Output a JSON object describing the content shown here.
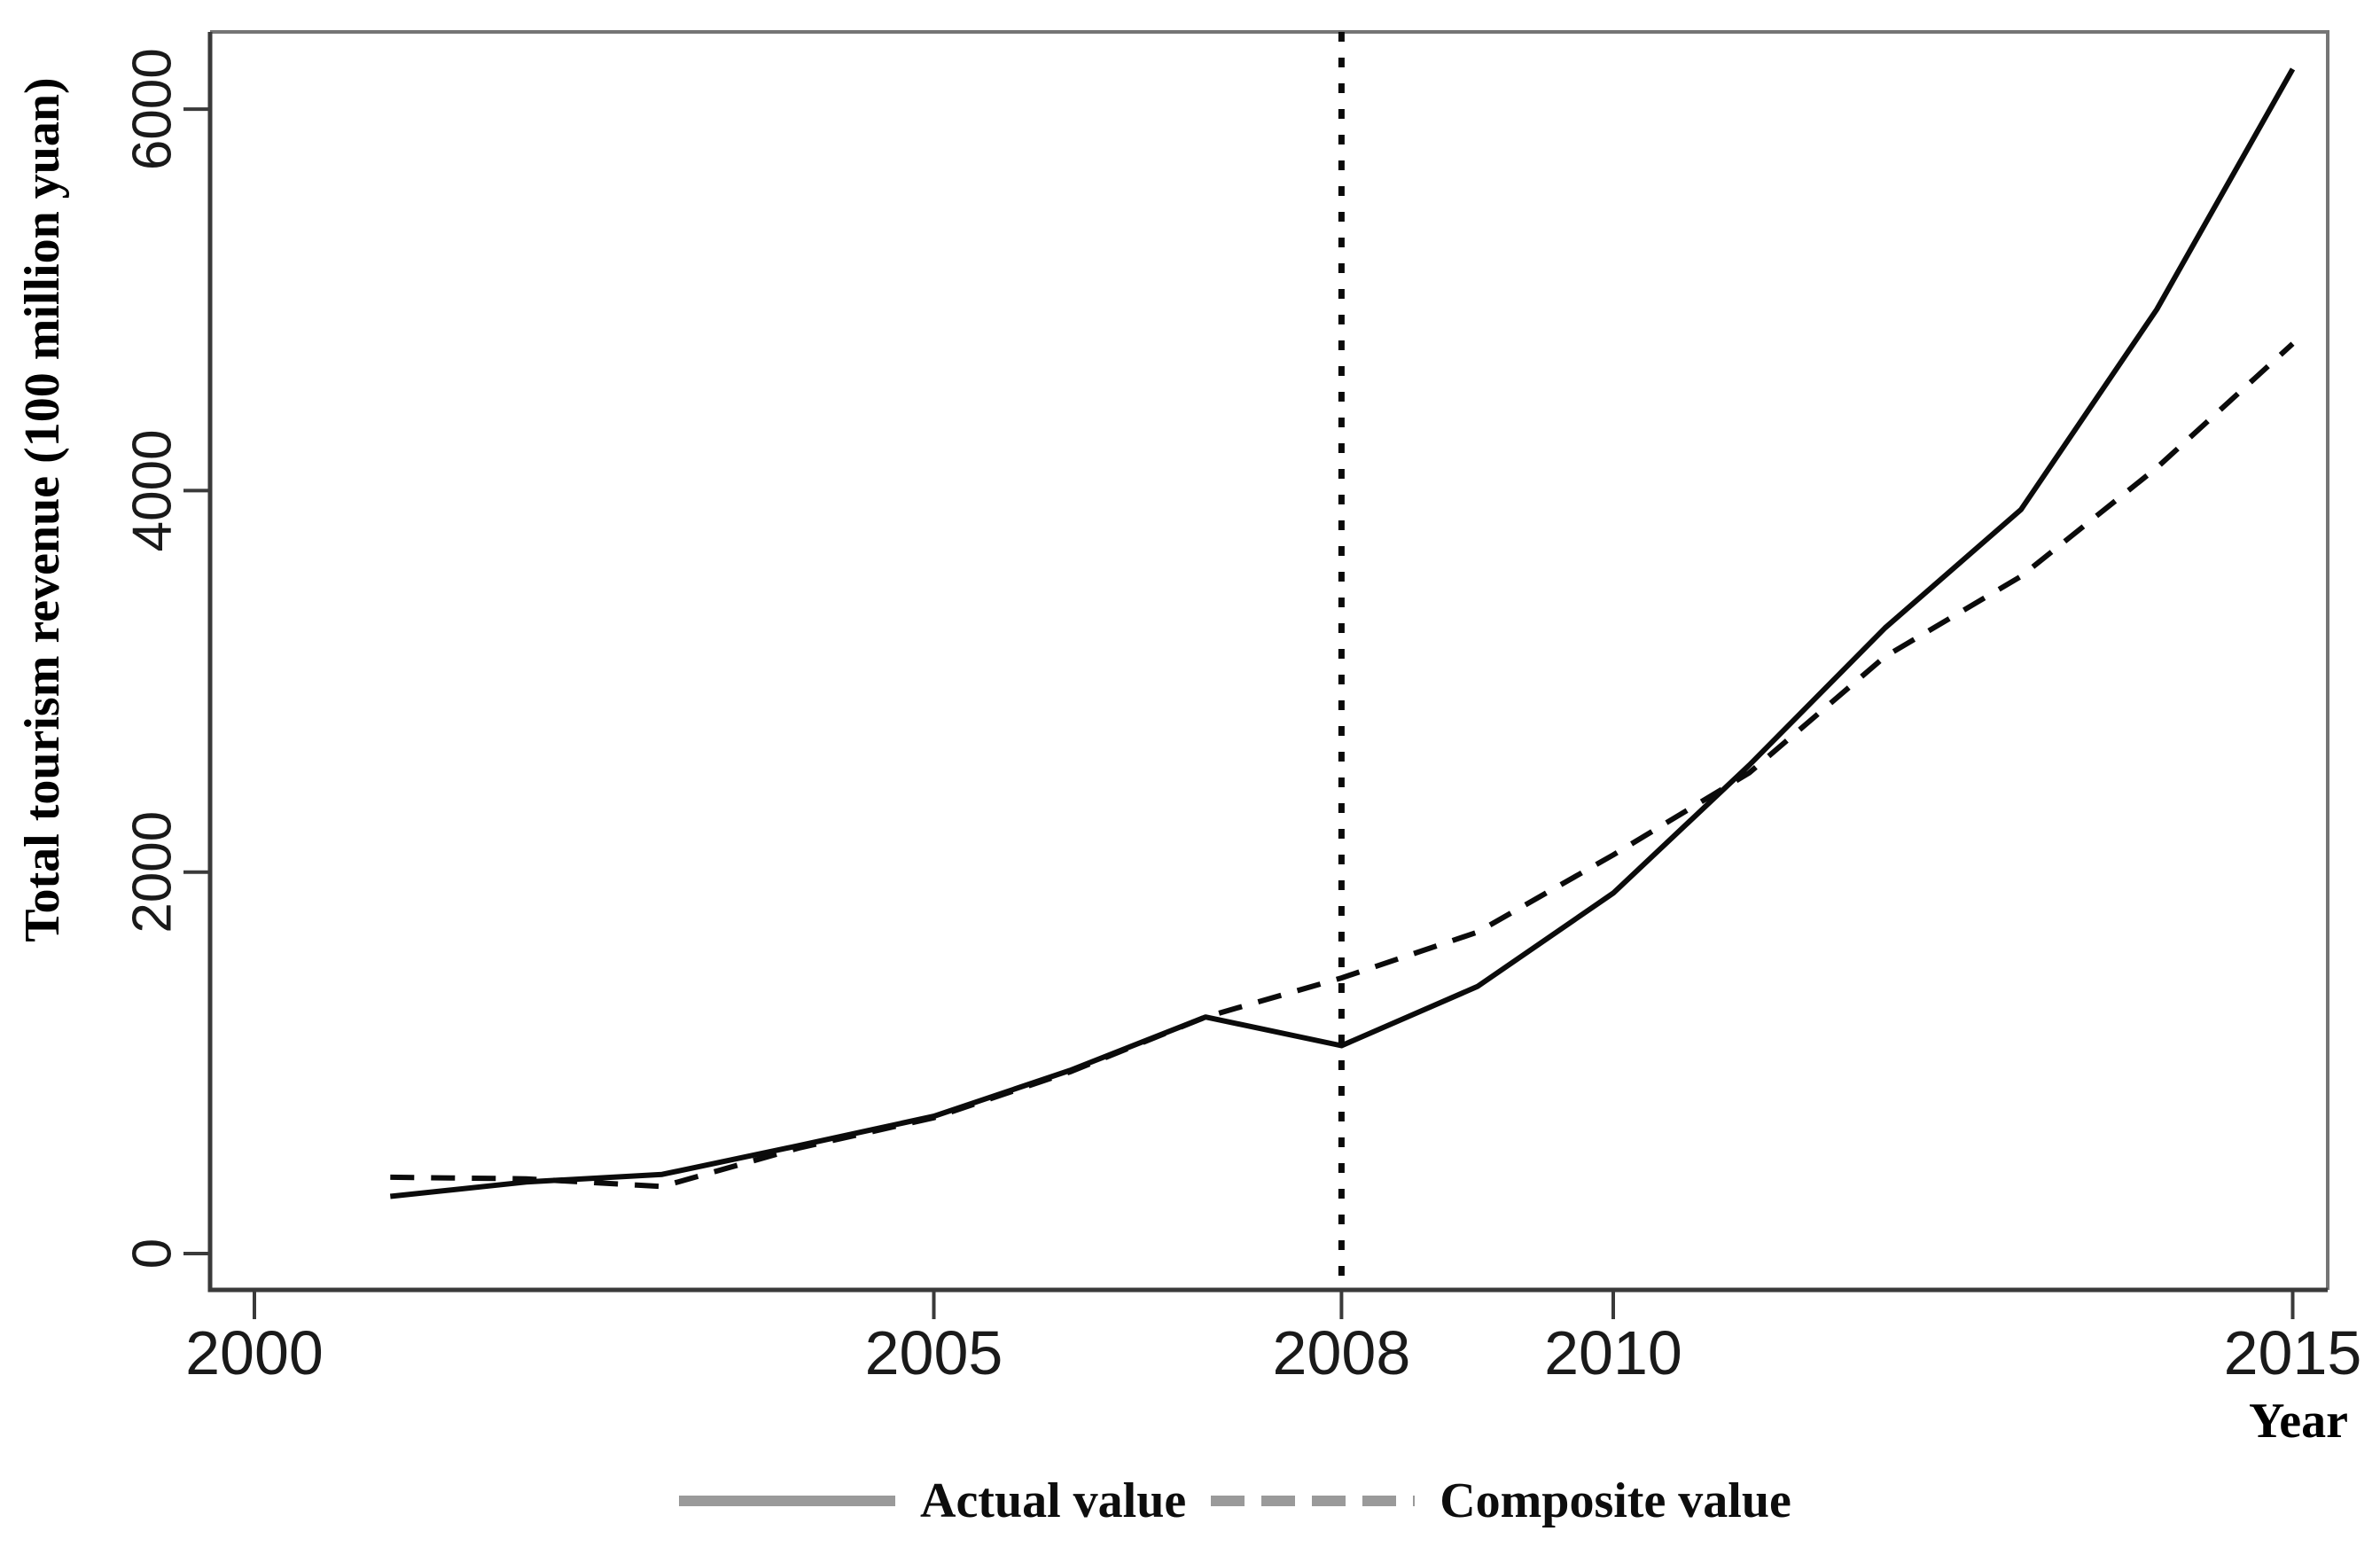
{
  "figure": {
    "background": "#ffffff",
    "curve_color": "#0b0b0b",
    "axis_color": "#3a3a3a",
    "border_color": "#757575",
    "legend_swatch_color": "#9a9a9a"
  },
  "chart_data": {
    "type": "line",
    "title": "",
    "xlabel": "Year",
    "ylabel": "Total tourism revenue (100 million yuan)",
    "xlim": [
      1999.67,
      2015.26
    ],
    "ylim": [
      0,
      6400
    ],
    "grid": "off",
    "x_ticks": [
      2000,
      2005,
      2008,
      2010,
      2015
    ],
    "x_tick_labels": [
      "2000",
      "2005",
      "2008",
      "2010",
      "2015"
    ],
    "y_ticks": [
      0,
      2000,
      4000,
      6000
    ],
    "y_tick_labels": [
      "0",
      "2000",
      "4000",
      "6000"
    ],
    "vline_x": 2008,
    "x": [
      2001,
      2002,
      2003,
      2004,
      2005,
      2006,
      2007,
      2008,
      2009,
      2010,
      2011,
      2012,
      2013,
      2014,
      2015
    ],
    "series": [
      {
        "name": "Actual value",
        "style": "solid",
        "values": [
          300,
          375,
          415,
          565,
          720,
          960,
          1240,
          1090,
          1400,
          1890,
          2560,
          3280,
          3900,
          4950,
          6210
        ]
      },
      {
        "name": "Composite value",
        "style": "dashed",
        "values": [
          400,
          392,
          352,
          552,
          712,
          952,
          1240,
          1445,
          1685,
          2090,
          2520,
          3130,
          3550,
          4120,
          4770
        ]
      }
    ],
    "legend": {
      "position": "bottom-center",
      "entries": [
        "Actual value",
        "Composite value"
      ]
    }
  }
}
